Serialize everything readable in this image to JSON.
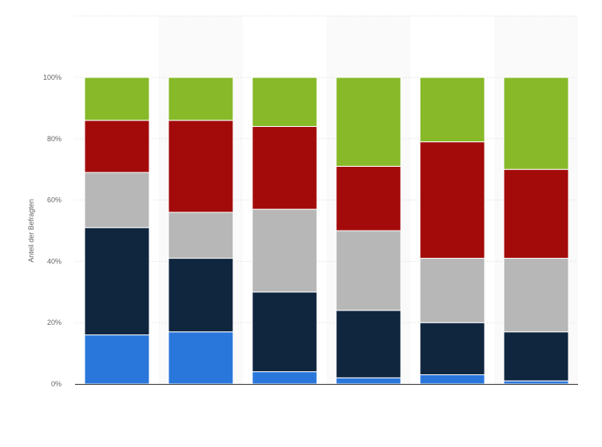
{
  "chart_data": {
    "type": "bar",
    "stacked": true,
    "ylabel": "Anteil der Befragten",
    "ylim": [
      0,
      100
    ],
    "y_ticks": [
      {
        "value": 0,
        "label": "0%"
      },
      {
        "value": 20,
        "label": "20%"
      },
      {
        "value": 40,
        "label": "40%"
      },
      {
        "value": 60,
        "label": "60%"
      },
      {
        "value": 80,
        "label": "80%"
      },
      {
        "value": 100,
        "label": "100%"
      }
    ],
    "grid": true,
    "legend": "none",
    "category_count": 6,
    "series": [
      {
        "color": "#2a77dc",
        "values": [
          16,
          17,
          4,
          2,
          3,
          1
        ]
      },
      {
        "color": "#10263f",
        "values": [
          35,
          24,
          26,
          22,
          17,
          16
        ]
      },
      {
        "color": "#b7b7b7",
        "values": [
          18,
          15,
          27,
          26,
          21,
          24
        ]
      },
      {
        "color": "#a30b0b",
        "values": [
          17,
          30,
          27,
          21,
          38,
          29
        ]
      },
      {
        "color": "#87b929",
        "values": [
          14,
          14,
          16,
          29,
          21,
          30
        ]
      }
    ]
  }
}
